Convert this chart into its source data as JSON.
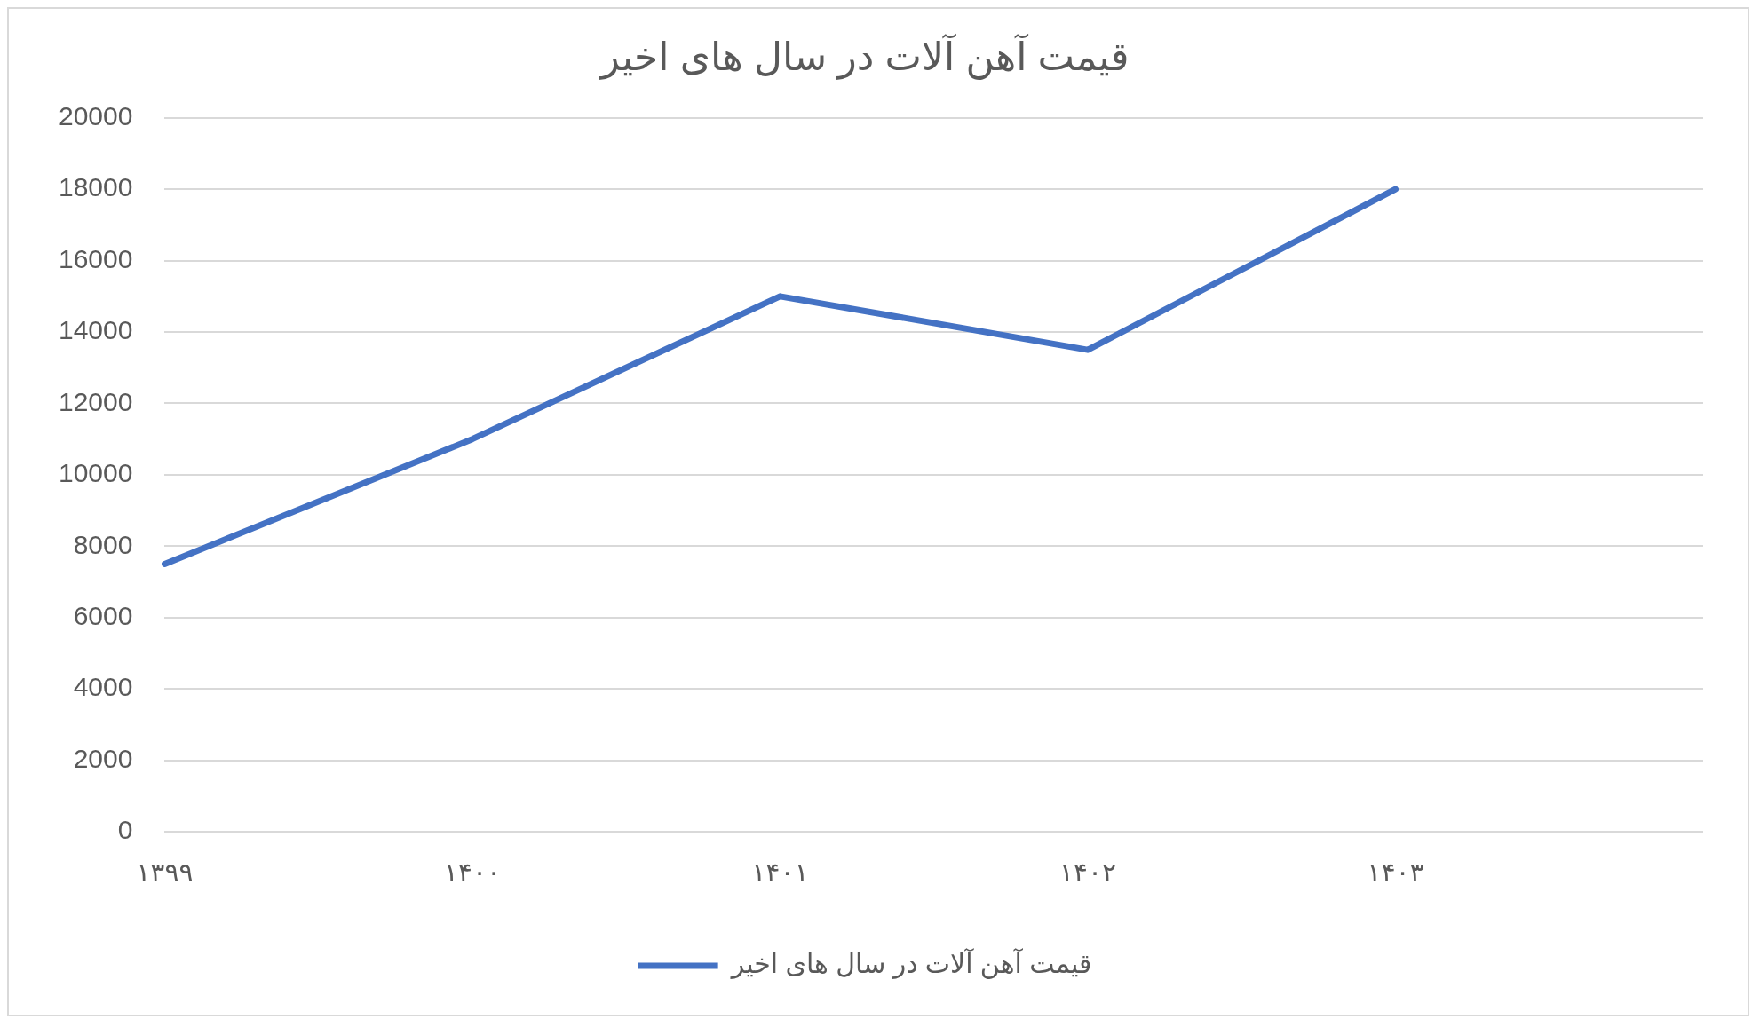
{
  "chart_data": {
    "type": "line",
    "title": "قیمت آهن آلات در سال های اخیر",
    "categories": [
      "۱۳۹۹",
      "۱۴۰۰",
      "۱۴۰۱",
      "۱۴۰۲",
      "۱۴۰۳",
      null
    ],
    "series": [
      {
        "name": "قیمت آهن آلات در سال های اخیر",
        "color": "#4472c4",
        "values": [
          7500,
          11000,
          15000,
          13500,
          18000,
          null
        ]
      }
    ],
    "ylim": [
      0,
      20000
    ],
    "yticks": [
      0,
      2000,
      4000,
      6000,
      8000,
      10000,
      12000,
      14000,
      16000,
      18000,
      20000
    ],
    "grid": "y",
    "legend": "bottom",
    "marker": "none",
    "line_style": "solid"
  }
}
